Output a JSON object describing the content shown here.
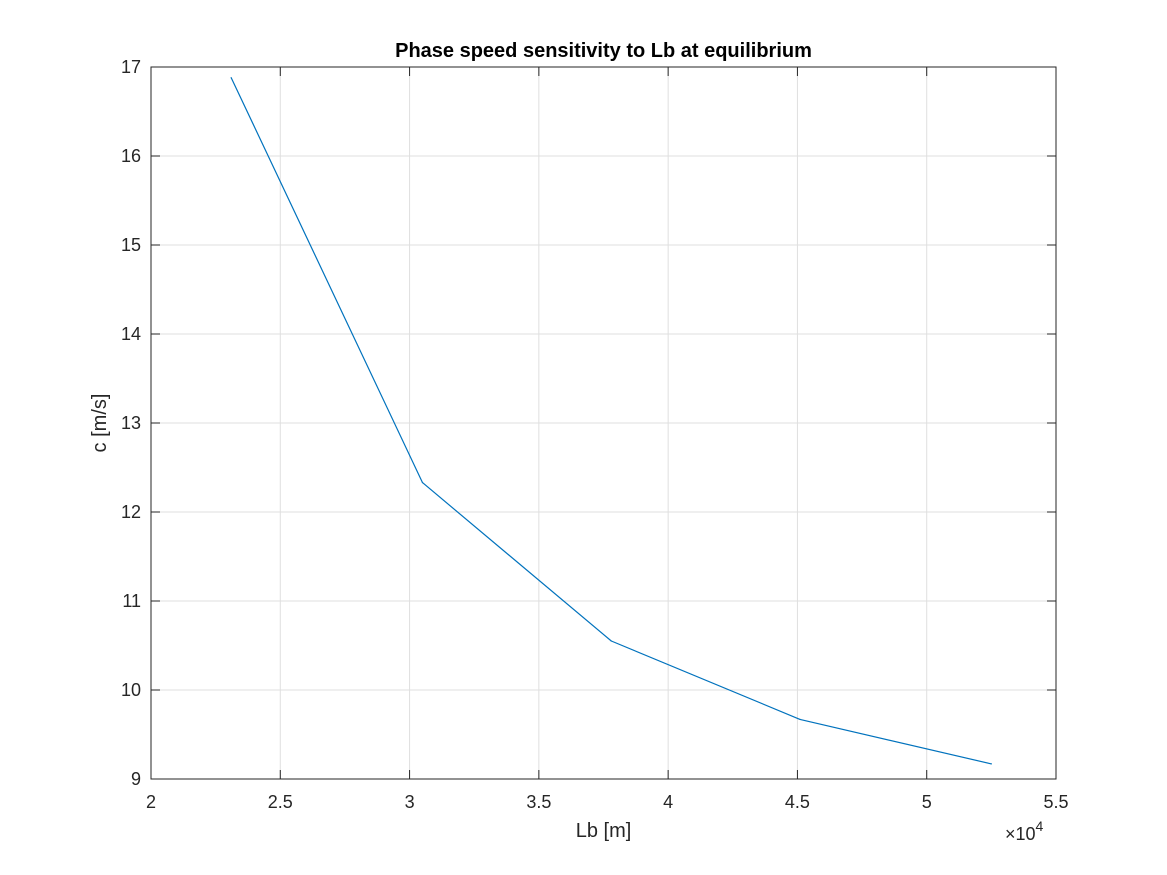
{
  "chart_data": {
    "type": "line",
    "title": "Phase speed sensitivity to Lb at equilibrium",
    "xlabel": "Lb [m]",
    "ylabel": "c [m/s]",
    "x_exponent_label": "×10",
    "x_exponent_power": "4",
    "xlim": [
      20000,
      55000
    ],
    "ylim": [
      9,
      17
    ],
    "x_ticks": [
      20000,
      25000,
      30000,
      35000,
      40000,
      45000,
      50000,
      55000
    ],
    "x_tick_labels": [
      "2",
      "2.5",
      "3",
      "3.5",
      "4",
      "4.5",
      "5",
      "5.5"
    ],
    "y_ticks": [
      9,
      10,
      11,
      12,
      13,
      14,
      15,
      16,
      17
    ],
    "y_tick_labels": [
      "9",
      "10",
      "11",
      "12",
      "13",
      "14",
      "15",
      "16",
      "17"
    ],
    "grid": true,
    "series": [
      {
        "color": "#0072BD",
        "x": [
          23100,
          30500,
          37800,
          45100,
          52500
        ],
        "y": [
          16.88,
          12.33,
          10.55,
          9.67,
          9.17
        ]
      }
    ]
  }
}
